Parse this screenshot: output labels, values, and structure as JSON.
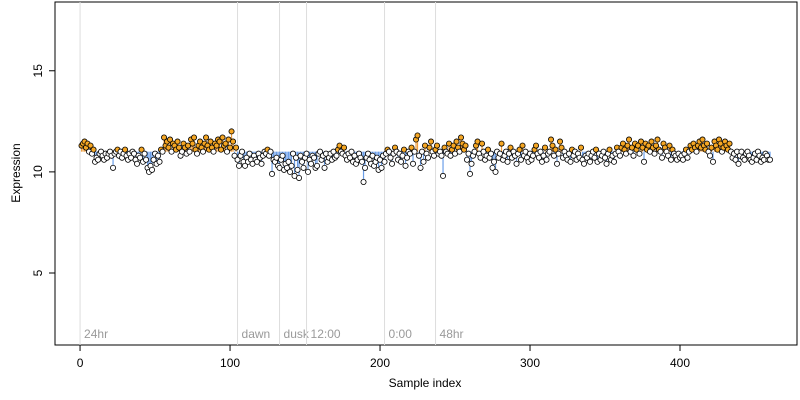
{
  "chart_data": {
    "type": "scatter",
    "x_label": "Sample index",
    "y_label": "Expression",
    "xlim": [
      -16.7,
      478
    ],
    "ylim": [
      1.44,
      18.4
    ],
    "xticks": [
      0,
      100,
      200,
      300,
      400
    ],
    "yticks": [
      5,
      10,
      15
    ],
    "reference": 11,
    "colors": {
      "above": "#f5a623",
      "below": "#ffffff",
      "stem_above": "#f0a040",
      "stem_below": "#6a9ee8",
      "guide": "#dddddd"
    },
    "annotations": [
      {
        "x": 0,
        "label": "24hr"
      },
      {
        "x": 105,
        "label": "dawn"
      },
      {
        "x": 133,
        "label": "dusk"
      },
      {
        "x": 151,
        "label": "12:00"
      },
      {
        "x": 203,
        "label": "0:00"
      },
      {
        "x": 237,
        "label": "48hr"
      }
    ],
    "x": [
      1,
      2,
      3,
      4,
      5,
      6,
      7,
      8,
      9,
      10,
      11,
      12,
      13,
      14,
      15,
      16,
      17,
      18,
      19,
      20,
      21,
      22,
      23,
      24,
      25,
      26,
      27,
      28,
      29,
      30,
      31,
      32,
      33,
      34,
      35,
      36,
      37,
      38,
      39,
      40,
      41,
      42,
      43,
      44,
      45,
      46,
      47,
      48,
      49,
      50,
      51,
      52,
      53,
      54,
      55,
      56,
      57,
      58,
      59,
      60,
      61,
      62,
      63,
      64,
      65,
      66,
      67,
      68,
      69,
      70,
      71,
      72,
      73,
      74,
      75,
      76,
      77,
      78,
      79,
      80,
      81,
      82,
      83,
      84,
      85,
      86,
      87,
      88,
      89,
      90,
      91,
      92,
      93,
      94,
      95,
      96,
      97,
      98,
      99,
      100,
      101,
      102,
      103,
      104,
      105,
      106,
      107,
      108,
      109,
      110,
      111,
      112,
      113,
      114,
      115,
      116,
      117,
      118,
      119,
      120,
      121,
      122,
      123,
      124,
      125,
      126,
      127,
      128,
      129,
      130,
      131,
      132,
      133,
      134,
      135,
      136,
      137,
      138,
      139,
      140,
      141,
      142,
      143,
      144,
      145,
      146,
      147,
      148,
      149,
      150,
      151,
      152,
      153,
      154,
      155,
      156,
      157,
      158,
      159,
      160,
      161,
      162,
      163,
      164,
      165,
      166,
      167,
      168,
      169,
      170,
      171,
      172,
      173,
      174,
      175,
      176,
      177,
      178,
      179,
      180,
      181,
      182,
      183,
      184,
      185,
      186,
      187,
      188,
      189,
      190,
      191,
      192,
      193,
      194,
      195,
      196,
      197,
      198,
      199,
      200,
      201,
      202,
      203,
      204,
      205,
      206,
      207,
      208,
      209,
      210,
      211,
      212,
      213,
      214,
      215,
      216,
      217,
      218,
      219,
      220,
      221,
      222,
      223,
      224,
      225,
      226,
      227,
      228,
      229,
      230,
      231,
      232,
      233,
      234,
      235,
      236,
      237,
      238,
      239,
      240,
      241,
      242,
      243,
      244,
      245,
      246,
      247,
      248,
      249,
      250,
      251,
      252,
      253,
      254,
      255,
      256,
      257,
      258,
      259,
      260,
      261,
      262,
      263,
      264,
      265,
      266,
      267,
      268,
      269,
      270,
      271,
      272,
      273,
      274,
      275,
      276,
      277,
      278,
      279,
      280,
      281,
      282,
      283,
      284,
      285,
      286,
      287,
      288,
      289,
      290,
      291,
      292,
      293,
      294,
      295,
      296,
      297,
      298,
      299,
      300,
      301,
      302,
      303,
      304,
      305,
      306,
      307,
      308,
      309,
      310,
      311,
      312,
      313,
      314,
      315,
      316,
      317,
      318,
      319,
      320,
      321,
      322,
      323,
      324,
      325,
      326,
      327,
      328,
      329,
      330,
      331,
      332,
      333,
      334,
      335,
      336,
      337,
      338,
      339,
      340,
      341,
      342,
      343,
      344,
      345,
      346,
      347,
      348,
      349,
      350,
      351,
      352,
      353,
      354,
      355,
      356,
      357,
      358,
      359,
      360,
      361,
      362,
      363,
      364,
      365,
      366,
      367,
      368,
      369,
      370,
      371,
      372,
      373,
      374,
      375,
      376,
      377,
      378,
      379,
      380,
      381,
      382,
      383,
      384,
      385,
      386,
      387,
      388,
      389,
      390,
      391,
      392,
      393,
      394,
      395,
      396,
      397,
      398,
      399,
      400,
      401,
      402,
      403,
      404,
      405,
      406,
      407,
      408,
      409,
      410,
      411,
      412,
      413,
      414,
      415,
      416,
      417,
      418,
      419,
      420,
      421,
      422,
      423,
      424,
      425,
      426,
      427,
      428,
      429,
      430,
      431,
      432,
      433,
      434,
      435,
      436,
      437,
      438,
      439,
      440,
      441,
      442,
      443,
      444,
      445,
      446,
      447,
      448,
      449,
      450,
      451,
      452,
      453,
      454,
      455,
      456,
      457,
      458,
      459,
      460
    ],
    "values": [
      11.3,
      11.4,
      11.5,
      11.2,
      11.4,
      11.0,
      11.3,
      10.9,
      11.1,
      10.5,
      10.7,
      10.6,
      10.9,
      11.0,
      10.8,
      10.6,
      10.9,
      10.7,
      10.9,
      11.0,
      10.8,
      10.2,
      10.9,
      11.0,
      11.1,
      10.8,
      11.0,
      10.7,
      10.9,
      11.1,
      10.8,
      10.6,
      10.9,
      10.7,
      11.0,
      10.9,
      10.6,
      10.4,
      10.8,
      10.7,
      11.1,
      10.5,
      10.9,
      10.6,
      10.2,
      10.0,
      10.3,
      10.1,
      10.6,
      10.9,
      10.4,
      10.8,
      10.5,
      11.1,
      11.0,
      11.7,
      11.3,
      11.5,
      11.2,
      11.6,
      11.0,
      11.4,
      11.3,
      11.1,
      11.5,
      11.2,
      10.8,
      11.0,
      11.4,
      11.2,
      10.9,
      11.3,
      11.0,
      11.6,
      11.4,
      11.7,
      11.1,
      10.9,
      11.3,
      11.5,
      11.2,
      11.0,
      11.4,
      11.7,
      11.3,
      11.1,
      11.5,
      11.2,
      11.0,
      11.4,
      11.3,
      11.6,
      11.5,
      11.1,
      11.7,
      11.3,
      11.4,
      11.0,
      11.6,
      11.2,
      12.0,
      11.5,
      10.8,
      11.2,
      10.6,
      10.3,
      10.8,
      11.0,
      10.5,
      10.3,
      10.7,
      10.5,
      10.9,
      10.6,
      10.4,
      10.8,
      10.6,
      10.5,
      10.9,
      10.7,
      10.4,
      10.8,
      11.0,
      10.9,
      11.1,
      10.8,
      11.0,
      9.9,
      10.6,
      10.5,
      10.7,
      10.3,
      10.2,
      10.6,
      10.8,
      10.1,
      10.4,
      10.2,
      10.5,
      10.0,
      10.3,
      10.9,
      9.8,
      10.7,
      10.1,
      9.7,
      10.8,
      10.5,
      10.2,
      10.7,
      10.9,
      10.0,
      10.6,
      10.4,
      10.8,
      10.7,
      10.2,
      10.3,
      10.9,
      11.0,
      10.6,
      10.8,
      10.2,
      10.9,
      10.5,
      10.7,
      10.9,
      10.6,
      11.0,
      10.7,
      10.8,
      11.1,
      11.3,
      11.0,
      10.9,
      11.2,
      10.8,
      10.6,
      10.9,
      10.7,
      11.0,
      10.5,
      10.8,
      10.4,
      10.6,
      10.9,
      10.7,
      10.5,
      9.5,
      10.2,
      10.7,
      10.9,
      10.6,
      10.4,
      10.8,
      10.3,
      10.5,
      10.7,
      10.1,
      10.6,
      10.2,
      10.8,
      10.5,
      10.9,
      11.1,
      11.0,
      10.7,
      10.4,
      10.9,
      11.2,
      11.0,
      10.6,
      10.9,
      10.5,
      10.8,
      11.1,
      10.3,
      10.7,
      11.0,
      10.9,
      11.2,
      10.4,
      11.0,
      11.6,
      11.8,
      10.8,
      10.2,
      11.0,
      10.5,
      11.3,
      10.9,
      10.7,
      11.2,
      11.5,
      11.0,
      10.8,
      11.1,
      11.3,
      10.9,
      11.0,
      10.8,
      9.8,
      11.2,
      11.0,
      10.9,
      11.4,
      10.8,
      11.1,
      11.3,
      10.9,
      11.5,
      11.2,
      11.0,
      11.7,
      11.4,
      11.1,
      11.3,
      10.6,
      10.9,
      9.9,
      10.4,
      10.8,
      11.0,
      11.3,
      11.5,
      10.9,
      10.7,
      11.4,
      11.0,
      10.6,
      10.8,
      11.1,
      10.7,
      10.9,
      10.2,
      10.5,
      10.0,
      11.0,
      10.7,
      10.9,
      11.4,
      10.6,
      10.8,
      11.0,
      10.5,
      10.9,
      11.2,
      10.7,
      11.0,
      10.8,
      10.4,
      10.9,
      11.1,
      10.6,
      11.3,
      10.8,
      11.0,
      10.7,
      10.5,
      10.9,
      10.6,
      10.8,
      11.1,
      11.3,
      10.9,
      10.7,
      11.0,
      10.5,
      10.8,
      11.2,
      10.6,
      10.9,
      11.0,
      11.6,
      11.3,
      10.8,
      11.1,
      10.4,
      10.9,
      11.5,
      11.2,
      10.7,
      11.0,
      10.8,
      10.6,
      10.9,
      10.5,
      11.1,
      10.8,
      11.0,
      10.6,
      10.9,
      10.7,
      11.2,
      10.6,
      10.4,
      10.8,
      10.7,
      10.9,
      10.5,
      10.8,
      11.0,
      10.7,
      11.1,
      10.5,
      10.9,
      10.6,
      10.8,
      11.0,
      10.7,
      10.4,
      10.9,
      11.1,
      10.6,
      10.8,
      10.5,
      10.9,
      11.2,
      11.0,
      10.8,
      11.2,
      11.4,
      11.1,
      10.9,
      11.3,
      11.6,
      11.0,
      11.2,
      10.8,
      11.4,
      11.1,
      11.3,
      10.9,
      11.5,
      11.2,
      10.5,
      11.4,
      11.1,
      11.3,
      11.0,
      11.5,
      11.2,
      10.9,
      11.3,
      11.6,
      11.1,
      11.0,
      10.7,
      11.4,
      11.2,
      11.0,
      10.8,
      11.3,
      10.6,
      11.1,
      10.9,
      10.8,
      10.6,
      10.9,
      10.7,
      10.8,
      10.6,
      10.9,
      11.1,
      10.7,
      11.0,
      11.3,
      11.1,
      11.4,
      11.2,
      11.0,
      11.3,
      11.5,
      11.2,
      11.6,
      11.3,
      11.1,
      11.4,
      11.0,
      10.8,
      11.2,
      10.5,
      11.5,
      11.3,
      11.1,
      11.6,
      11.4,
      11.0,
      11.2,
      11.5,
      11.3,
      11.1,
      11.4,
      11.0,
      10.7,
      10.9,
      10.6,
      11.0,
      10.4,
      10.8,
      11.0,
      10.7,
      10.6,
      10.9,
      11.0,
      10.8,
      10.6,
      10.5,
      10.7,
      10.9,
      10.6,
      11.0,
      10.8,
      10.5,
      10.7,
      10.6,
      10.9,
      10.8,
      10.6,
      10.6
    ]
  }
}
